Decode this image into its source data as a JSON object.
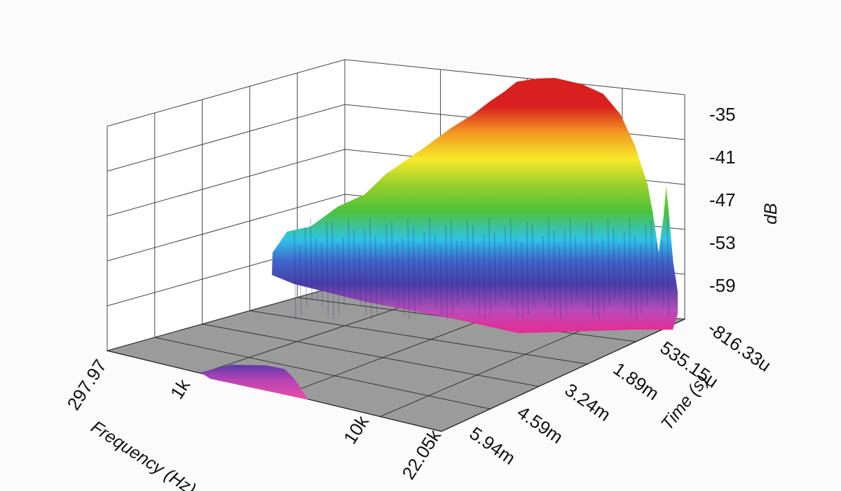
{
  "chart_data": {
    "type": "surface-3d",
    "x_axis": {
      "label": "Frequency (Hz)",
      "scale": "log",
      "ticks": [
        "297.97",
        "1k",
        "10k",
        "22.05k"
      ],
      "tick_values": [
        297.97,
        1000,
        10000,
        22050
      ],
      "range": [
        297.97,
        22050
      ]
    },
    "time_axis": {
      "label": "Time (s)",
      "ticks": [
        "-816.33u",
        "535.15u",
        "1.89m",
        "3.24m",
        "4.59m",
        "5.94m"
      ],
      "range": [
        -0.00081633,
        0.00594
      ]
    },
    "z_axis": {
      "label": "dB",
      "ticks": [
        "-35",
        "-41",
        "-47",
        "-53",
        "-59"
      ],
      "tick_values": [
        -35,
        -41,
        -47,
        -53,
        -59
      ],
      "range": [
        -65,
        -35
      ]
    },
    "series": [
      {
        "frequency_hz": [
          300,
          350,
          450,
          600,
          800,
          1000,
          1500,
          2000,
          2500,
          3000,
          3500,
          4000,
          5000,
          6000,
          8000,
          10000,
          12000,
          14000,
          16000,
          17000,
          18000,
          19000,
          19500,
          20000,
          21000,
          22050
        ],
        "peak_db_at_first_time": [
          -62,
          -59,
          -58,
          -55,
          -53,
          -50,
          -46,
          -43,
          -41,
          -39,
          -37.5,
          -36,
          -35.3,
          -35,
          -35.5,
          -36.5,
          -39,
          -43,
          -48,
          -52,
          -57,
          -52,
          -48,
          -51,
          -58,
          -62
        ]
      }
    ],
    "grid": true,
    "colormap": "rainbow (magenta low to red high)"
  }
}
